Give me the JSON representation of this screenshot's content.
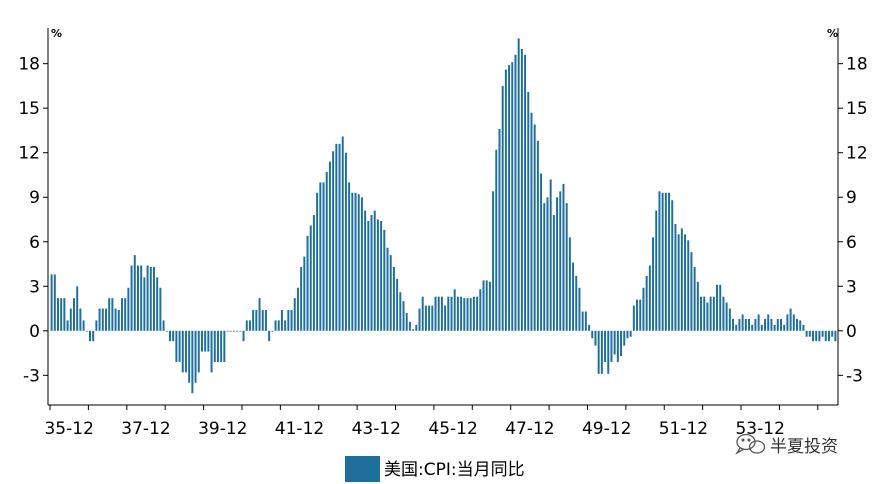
{
  "colors": {
    "bar": "#1f6f9c",
    "axis": "#000000"
  },
  "watermark": {
    "text": "半夏投资",
    "icon": "wechat-icon"
  },
  "chart_data": {
    "type": "bar",
    "legend_position": "bottom-center",
    "grid": false,
    "ylim": [
      -5,
      20
    ],
    "yticks": [
      -3,
      0,
      3,
      6,
      9,
      12,
      15,
      18
    ],
    "y_unit_left": "%",
    "y_unit_right": "%",
    "x_tick_labels": [
      "35-12",
      "37-12",
      "39-12",
      "41-12",
      "43-12",
      "45-12",
      "47-12",
      "49-12",
      "51-12",
      "53-12"
    ],
    "series": [
      {
        "name": "美国:CPI:当月同比",
        "values": [
          3.8,
          3.8,
          2.2,
          2.2,
          2.2,
          0.7,
          1.5,
          2.2,
          3.0,
          1.5,
          0.7,
          0,
          -0.7,
          -0.7,
          0.7,
          1.5,
          1.5,
          1.5,
          2.2,
          2.2,
          1.5,
          1.4,
          2.2,
          2.2,
          2.9,
          4.4,
          5.1,
          4.4,
          4.4,
          3.6,
          4.4,
          4.3,
          4.3,
          3.6,
          2.9,
          0.7,
          0,
          -0.7,
          -0.7,
          -2.1,
          -2.1,
          -2.8,
          -2.8,
          -3.5,
          -4.2,
          -3.5,
          -2.8,
          -1.4,
          -1.4,
          -1.4,
          -2.8,
          -2.1,
          -2.1,
          -2.1,
          -2.1,
          0,
          0,
          0,
          0,
          0,
          -0.7,
          0.7,
          0.7,
          1.4,
          1.4,
          2.2,
          1.4,
          1.4,
          -0.7,
          0,
          0.7,
          0.7,
          1.4,
          0.7,
          1.4,
          1.4,
          2.2,
          2.9,
          4.3,
          5.0,
          6.4,
          7.1,
          7.8,
          9.3,
          10.0,
          10.0,
          10.7,
          11.4,
          12.1,
          12.6,
          12.6,
          13.1,
          12.0,
          10.0,
          9.3,
          9.3,
          9.2,
          9.0,
          8.1,
          7.4,
          7.8,
          8.1,
          7.5,
          7.4,
          6.8,
          5.6,
          5.1,
          4.3,
          3.5,
          2.6,
          2.0,
          1.2,
          0.6,
          0.1,
          0.4,
          1.5,
          2.3,
          1.7,
          1.7,
          1.7,
          2.3,
          2.3,
          2.3,
          1.7,
          2.3,
          2.3,
          2.8,
          2.3,
          2.3,
          2.2,
          2.2,
          2.2,
          2.3,
          2.3,
          2.8,
          3.4,
          3.4,
          3.3,
          9.4,
          12.2,
          13.6,
          16.5,
          17.6,
          17.9,
          18.1,
          18.6,
          19.7,
          19.0,
          18.6,
          16.1,
          14.7,
          13.9,
          12.8,
          10.6,
          8.6,
          9.0,
          10.2,
          7.8,
          9.0,
          9.4,
          9.9,
          8.6,
          6.3,
          4.6,
          3.7,
          2.9,
          1.3,
          1.3,
          0.4,
          -0.5,
          -1.0,
          -2.9,
          -2.9,
          -2.1,
          -2.9,
          -2.1,
          -1.6,
          -2.1,
          -1.7,
          -1.0,
          -0.5,
          -0.4,
          1.7,
          2.1,
          2.1,
          2.9,
          3.7,
          4.4,
          6.3,
          8.1,
          9.4,
          9.3,
          9.3,
          9.3,
          8.8,
          7.2,
          6.5,
          6.9,
          6.5,
          6.1,
          5.3,
          4.3,
          3.3,
          2.3,
          2.3,
          1.9,
          2.3,
          2.3,
          3.1,
          3.1,
          2.3,
          1.9,
          1.5,
          0.8,
          0.4,
          0.8,
          1.1,
          0.8,
          0.8,
          0.4,
          0.8,
          1.1,
          0.4,
          0.8,
          1.1,
          0.8,
          0.4,
          0.8,
          0.8,
          0.4,
          1.1,
          1.5,
          1.1,
          0.8,
          0.7,
          0.4,
          -0.4,
          -0.4,
          -0.7,
          -0.7,
          -0.7,
          -0.4,
          -0.7,
          -0.7,
          -0.4,
          -0.7
        ]
      }
    ]
  }
}
